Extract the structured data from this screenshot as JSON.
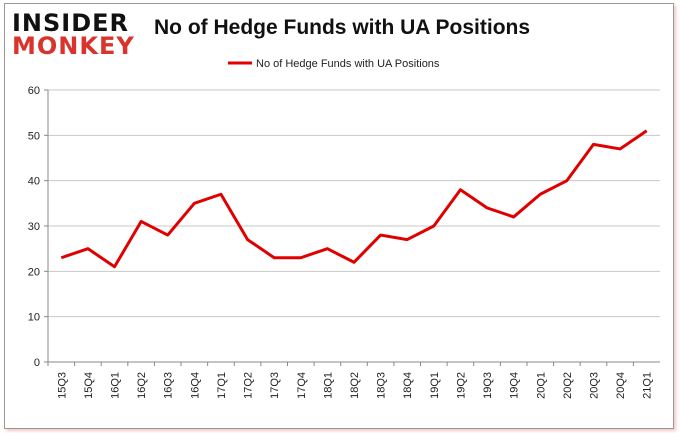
{
  "logo": {
    "line1": "INSIDER",
    "line2": "MONKEY"
  },
  "chart_data": {
    "type": "line",
    "title": "No of Hedge Funds with UA Positions",
    "xlabel": "",
    "ylabel": "",
    "categories": [
      "15Q3",
      "15Q4",
      "16Q1",
      "16Q2",
      "16Q3",
      "16Q4",
      "17Q1",
      "17Q2",
      "17Q3",
      "17Q4",
      "18Q1",
      "18Q2",
      "18Q3",
      "18Q4",
      "19Q1",
      "19Q2",
      "19Q3",
      "19Q4",
      "20Q1",
      "20Q2",
      "20Q3",
      "20Q4",
      "21Q1"
    ],
    "series": [
      {
        "name": "No of Hedge Funds with UA Positions",
        "color": "#e00000",
        "values": [
          23,
          25,
          21,
          31,
          28,
          35,
          37,
          27,
          23,
          23,
          25,
          22,
          28,
          27,
          30,
          38,
          34,
          32,
          37,
          40,
          48,
          47,
          51
        ]
      }
    ],
    "ylim": [
      0,
      60
    ],
    "yticks": [
      0,
      10,
      20,
      30,
      40,
      50,
      60
    ],
    "grid": true,
    "legend": "top-center"
  }
}
